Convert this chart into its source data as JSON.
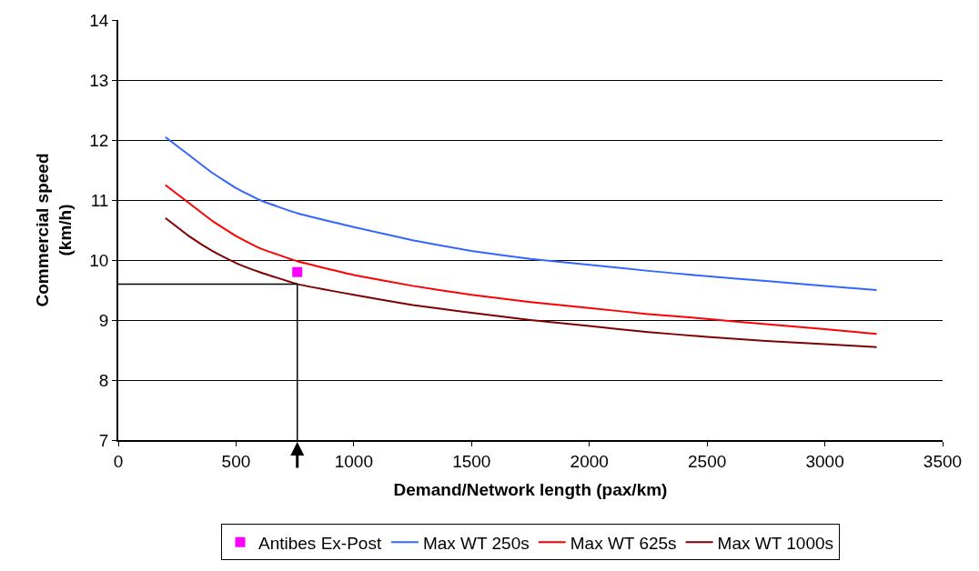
{
  "chart_data": {
    "type": "line",
    "xlabel": "Demand/Network length (pax/km)",
    "ylabel": "Commercial speed\n(km/h)",
    "x": [
      200,
      300,
      400,
      500,
      600,
      760,
      1000,
      1250,
      1500,
      1750,
      2000,
      2250,
      2500,
      2750,
      3000,
      3220
    ],
    "series": [
      {
        "name": "Antibes Ex-Post",
        "type": "scatter",
        "marker": "square",
        "color": "#ff00ff",
        "x": [
          760
        ],
        "values": [
          9.8
        ]
      },
      {
        "name": "Max WT 250s",
        "color": "#3366ff",
        "values": [
          12.05,
          11.75,
          11.45,
          11.2,
          11.0,
          10.78,
          10.55,
          10.33,
          10.15,
          10.02,
          9.92,
          9.82,
          9.73,
          9.65,
          9.57,
          9.5
        ]
      },
      {
        "name": "Max WT 625s",
        "color": "#ff0000",
        "values": [
          11.25,
          10.95,
          10.65,
          10.4,
          10.2,
          9.98,
          9.75,
          9.57,
          9.42,
          9.3,
          9.2,
          9.1,
          9.02,
          8.93,
          8.85,
          8.77
        ]
      },
      {
        "name": "Max WT 1000s",
        "color": "#800000",
        "values": [
          10.7,
          10.4,
          10.15,
          9.95,
          9.8,
          9.6,
          9.42,
          9.25,
          9.12,
          9.0,
          8.9,
          8.8,
          8.72,
          8.65,
          8.6,
          8.55
        ]
      }
    ],
    "xlim": [
      0,
      3500
    ],
    "xticks": [
      0,
      500,
      1000,
      1500,
      2000,
      2500,
      3000,
      3500
    ],
    "ylim": [
      7,
      14
    ],
    "yticks": [
      7,
      8,
      9,
      10,
      11,
      12,
      13,
      14
    ],
    "grid": "y",
    "legend": "bottom",
    "marker": "none",
    "ref_lines": [
      {
        "axis": "y",
        "value": 9.6,
        "color": "#000000"
      },
      {
        "axis": "x",
        "value": 760,
        "color": "#000000"
      }
    ]
  }
}
